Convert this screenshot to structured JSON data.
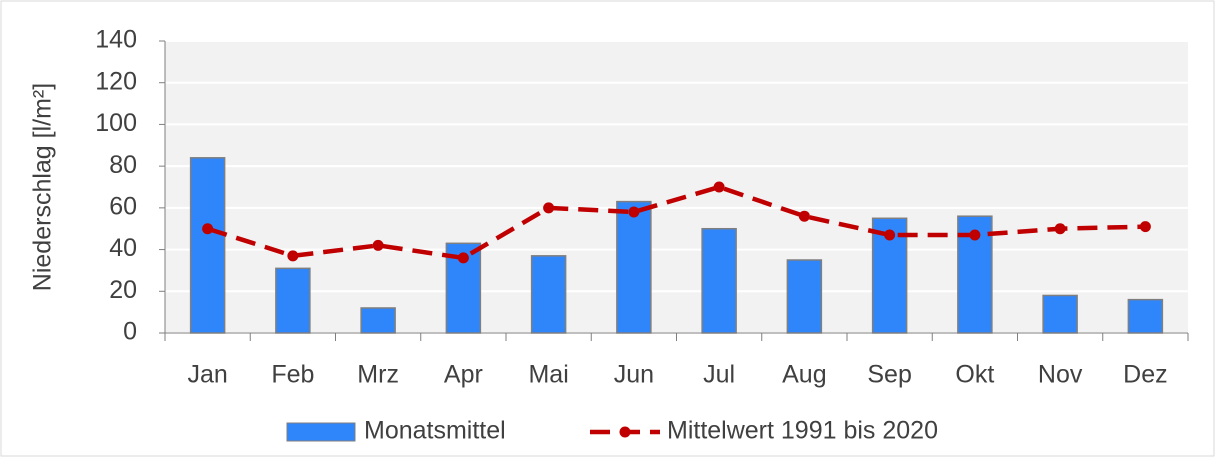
{
  "chart_data": {
    "type": "bar",
    "categories": [
      "Jan",
      "Feb",
      "Mrz",
      "Apr",
      "Mai",
      "Jun",
      "Jul",
      "Aug",
      "Sep",
      "Okt",
      "Nov",
      "Dez"
    ],
    "y_label": "Niederschlag [l/m²]",
    "series": [
      {
        "name": "Monatsmittel",
        "type": "bar",
        "color": "#2f86fb",
        "values": [
          84,
          31,
          12,
          43,
          37,
          63,
          50,
          35,
          55,
          56,
          18,
          16
        ]
      },
      {
        "name": "Mittelwert 1991 bis 2020",
        "type": "line",
        "color": "#c00000",
        "values": [
          50,
          37,
          42,
          36,
          60,
          58,
          70,
          56,
          47,
          47,
          50,
          51
        ]
      }
    ],
    "ylim": [
      0,
      140
    ],
    "yticks": [
      0,
      20,
      40,
      60,
      80,
      100,
      120,
      140
    ],
    "grid": true,
    "legend": "bottom"
  }
}
